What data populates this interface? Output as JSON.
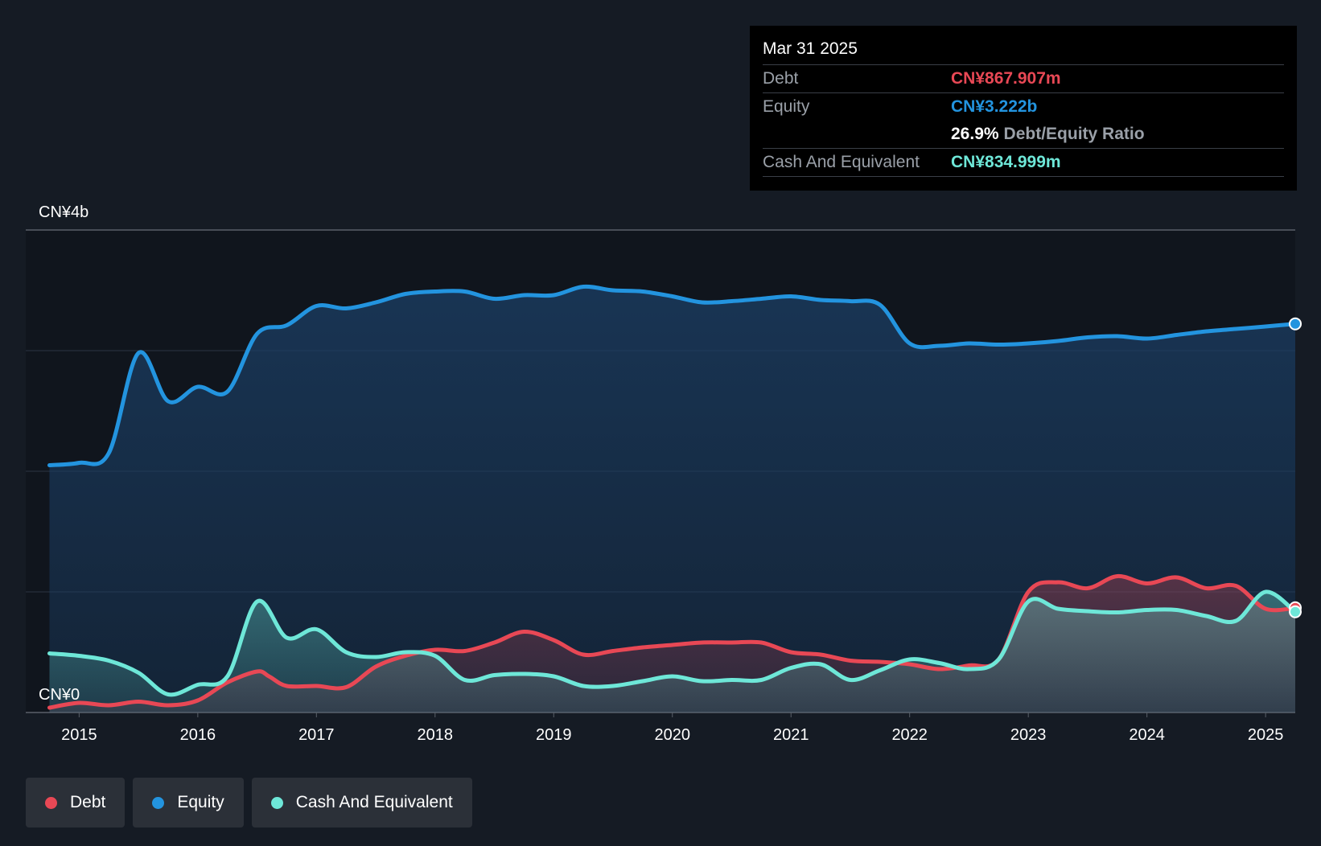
{
  "chart_data": {
    "type": "line",
    "ylabel_top": "CN¥4b",
    "ylabel_bottom": "CN¥0",
    "ylim": [
      0,
      4
    ],
    "xlim": [
      2014.55,
      2025.25
    ],
    "x_ticks": [
      "2015",
      "2016",
      "2017",
      "2018",
      "2019",
      "2020",
      "2021",
      "2022",
      "2023",
      "2024",
      "2025"
    ],
    "grid": true,
    "legend_position": "bottom-left",
    "series": [
      {
        "name": "Debt",
        "color": "#e84855",
        "points": [
          [
            2014.75,
            0.04
          ],
          [
            2015.0,
            0.08
          ],
          [
            2015.25,
            0.06
          ],
          [
            2015.5,
            0.09
          ],
          [
            2015.75,
            0.06
          ],
          [
            2016.0,
            0.1
          ],
          [
            2016.25,
            0.25
          ],
          [
            2016.5,
            0.34
          ],
          [
            2016.6,
            0.3
          ],
          [
            2016.75,
            0.22
          ],
          [
            2017.0,
            0.22
          ],
          [
            2017.25,
            0.21
          ],
          [
            2017.5,
            0.38
          ],
          [
            2017.75,
            0.47
          ],
          [
            2018.0,
            0.52
          ],
          [
            2018.25,
            0.51
          ],
          [
            2018.5,
            0.58
          ],
          [
            2018.75,
            0.67
          ],
          [
            2019.0,
            0.6
          ],
          [
            2019.25,
            0.48
          ],
          [
            2019.5,
            0.51
          ],
          [
            2019.75,
            0.54
          ],
          [
            2020.0,
            0.56
          ],
          [
            2020.25,
            0.58
          ],
          [
            2020.5,
            0.58
          ],
          [
            2020.75,
            0.58
          ],
          [
            2021.0,
            0.5
          ],
          [
            2021.25,
            0.48
          ],
          [
            2021.5,
            0.43
          ],
          [
            2021.75,
            0.42
          ],
          [
            2022.0,
            0.4
          ],
          [
            2022.25,
            0.36
          ],
          [
            2022.5,
            0.39
          ],
          [
            2022.75,
            0.44
          ],
          [
            2023.0,
            1.0
          ],
          [
            2023.25,
            1.08
          ],
          [
            2023.5,
            1.03
          ],
          [
            2023.75,
            1.13
          ],
          [
            2024.0,
            1.07
          ],
          [
            2024.25,
            1.12
          ],
          [
            2024.5,
            1.03
          ],
          [
            2024.75,
            1.05
          ],
          [
            2025.0,
            0.86
          ],
          [
            2025.25,
            0.868
          ]
        ]
      },
      {
        "name": "Equity",
        "color": "#2394df",
        "points": [
          [
            2014.75,
            2.05
          ],
          [
            2015.0,
            2.07
          ],
          [
            2015.25,
            2.15
          ],
          [
            2015.5,
            2.98
          ],
          [
            2015.75,
            2.58
          ],
          [
            2016.0,
            2.7
          ],
          [
            2016.25,
            2.66
          ],
          [
            2016.5,
            3.14
          ],
          [
            2016.75,
            3.21
          ],
          [
            2017.0,
            3.37
          ],
          [
            2017.25,
            3.35
          ],
          [
            2017.5,
            3.4
          ],
          [
            2017.75,
            3.47
          ],
          [
            2018.0,
            3.49
          ],
          [
            2018.25,
            3.49
          ],
          [
            2018.5,
            3.43
          ],
          [
            2018.75,
            3.46
          ],
          [
            2019.0,
            3.46
          ],
          [
            2019.25,
            3.53
          ],
          [
            2019.5,
            3.5
          ],
          [
            2019.75,
            3.49
          ],
          [
            2020.0,
            3.45
          ],
          [
            2020.25,
            3.4
          ],
          [
            2020.5,
            3.41
          ],
          [
            2020.75,
            3.43
          ],
          [
            2021.0,
            3.45
          ],
          [
            2021.25,
            3.42
          ],
          [
            2021.5,
            3.41
          ],
          [
            2021.75,
            3.38
          ],
          [
            2022.0,
            3.06
          ],
          [
            2022.25,
            3.04
          ],
          [
            2022.5,
            3.06
          ],
          [
            2022.75,
            3.05
          ],
          [
            2023.0,
            3.06
          ],
          [
            2023.25,
            3.08
          ],
          [
            2023.5,
            3.11
          ],
          [
            2023.75,
            3.12
          ],
          [
            2024.0,
            3.1
          ],
          [
            2024.25,
            3.13
          ],
          [
            2024.5,
            3.16
          ],
          [
            2024.75,
            3.18
          ],
          [
            2025.0,
            3.2
          ],
          [
            2025.25,
            3.222
          ]
        ]
      },
      {
        "name": "Cash And Equivalent",
        "color": "#6ee7d8",
        "points": [
          [
            2014.75,
            0.49
          ],
          [
            2015.0,
            0.47
          ],
          [
            2015.25,
            0.43
          ],
          [
            2015.5,
            0.33
          ],
          [
            2015.75,
            0.15
          ],
          [
            2016.0,
            0.23
          ],
          [
            2016.25,
            0.3
          ],
          [
            2016.5,
            0.92
          ],
          [
            2016.75,
            0.62
          ],
          [
            2017.0,
            0.69
          ],
          [
            2017.25,
            0.5
          ],
          [
            2017.5,
            0.46
          ],
          [
            2017.75,
            0.5
          ],
          [
            2018.0,
            0.47
          ],
          [
            2018.25,
            0.27
          ],
          [
            2018.5,
            0.31
          ],
          [
            2018.75,
            0.32
          ],
          [
            2019.0,
            0.3
          ],
          [
            2019.25,
            0.22
          ],
          [
            2019.5,
            0.22
          ],
          [
            2019.75,
            0.26
          ],
          [
            2020.0,
            0.3
          ],
          [
            2020.25,
            0.26
          ],
          [
            2020.5,
            0.27
          ],
          [
            2020.75,
            0.27
          ],
          [
            2021.0,
            0.37
          ],
          [
            2021.25,
            0.4
          ],
          [
            2021.5,
            0.27
          ],
          [
            2021.75,
            0.35
          ],
          [
            2022.0,
            0.44
          ],
          [
            2022.25,
            0.41
          ],
          [
            2022.5,
            0.36
          ],
          [
            2022.75,
            0.44
          ],
          [
            2023.0,
            0.92
          ],
          [
            2023.25,
            0.86
          ],
          [
            2023.5,
            0.84
          ],
          [
            2023.75,
            0.83
          ],
          [
            2024.0,
            0.85
          ],
          [
            2024.25,
            0.85
          ],
          [
            2024.5,
            0.8
          ],
          [
            2024.75,
            0.76
          ],
          [
            2025.0,
            1.0
          ],
          [
            2025.25,
            0.835
          ]
        ]
      }
    ]
  },
  "tooltip": {
    "date": "Mar 31 2025",
    "debt_label": "Debt",
    "debt_value": "CN¥867.907m",
    "equity_label": "Equity",
    "equity_value": "CN¥3.222b",
    "ratio_value": "26.9%",
    "ratio_label": "Debt/Equity Ratio",
    "cash_label": "Cash And Equivalent",
    "cash_value": "CN¥834.999m"
  },
  "legend": {
    "debt": "Debt",
    "equity": "Equity",
    "cash": "Cash And Equivalent"
  }
}
